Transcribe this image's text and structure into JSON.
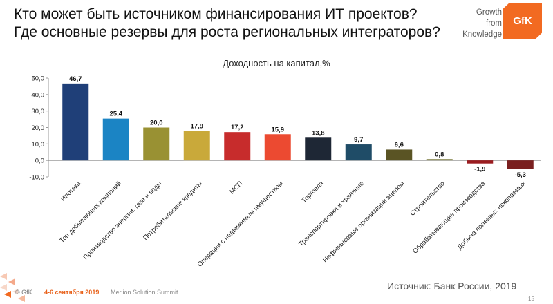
{
  "header": {
    "title_line1": "Кто может быть источником финансирования ИТ проектов?",
    "title_line2": "Где основные резервы для роста региональных интеграторов?"
  },
  "logo": {
    "tagline_1": "Growth",
    "tagline_2": "from",
    "tagline_3": "Knowledge",
    "brand": "GfK",
    "color": "#f26a21"
  },
  "chart_data": {
    "type": "bar",
    "title": "Доходность на капитал,%",
    "categories": [
      "Ипотека",
      "Топ добывающих компаний",
      "Производство энергии, газа и воды",
      "Потребительские кредиты",
      "МСП",
      "Операции с недвижимым имуществом",
      "Торговля",
      "Транспортировка и хранение",
      "Нефинансовые организации вцелом",
      "Строительство",
      "Обрабатывающие производства",
      "Добыча полезных ископаемых"
    ],
    "values": [
      46.7,
      25.4,
      20.0,
      17.9,
      17.2,
      15.9,
      13.8,
      9.7,
      6.6,
      0.8,
      -1.9,
      -5.3
    ],
    "value_labels": [
      "46,7",
      "25,4",
      "20,0",
      "17,9",
      "17,2",
      "15,9",
      "13,8",
      "9,7",
      "6,6",
      "0,8",
      "-1,9",
      "-5,3"
    ],
    "colors": [
      "#1f3f78",
      "#1b84c4",
      "#999133",
      "#c9a93a",
      "#c72c2c",
      "#ec4a31",
      "#1e2735",
      "#1f4c67",
      "#5a5424",
      "#7a7a3c",
      "#9b1c20",
      "#7a1f1f"
    ],
    "yticks": [
      -10,
      0,
      10,
      20,
      30,
      40,
      50
    ],
    "ytick_labels": [
      "-10,0",
      "0,0",
      "10,0",
      "20,0",
      "30,0",
      "40,0",
      "50,0"
    ],
    "ylim": [
      -10,
      50
    ],
    "xlabel": "",
    "ylabel": "",
    "grid": false
  },
  "footer": {
    "copyright": "© GfK",
    "date": "4-6 сентября 2019",
    "event": "Merlion Solution Summit",
    "source": "Источник: Банк России, 2019",
    "page": "15"
  }
}
